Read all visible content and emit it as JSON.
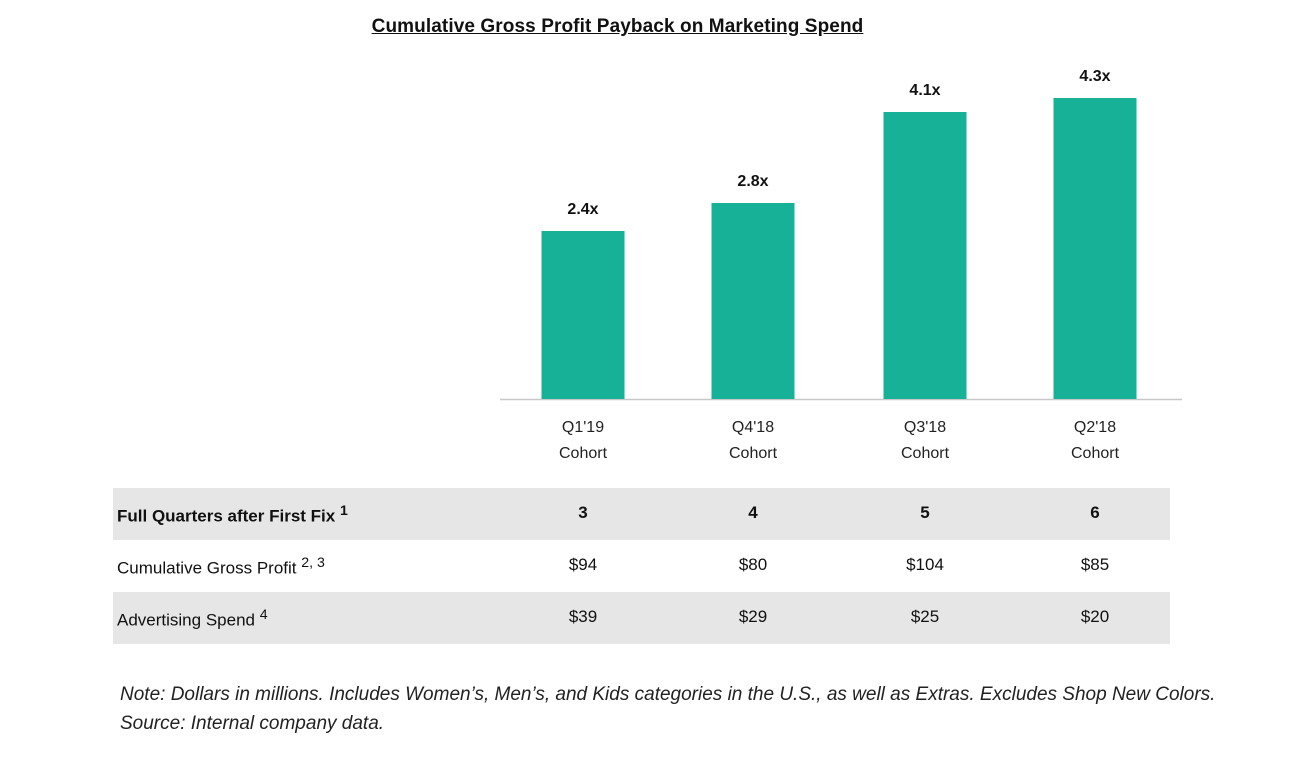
{
  "chart_data": {
    "type": "bar",
    "title": "Cumulative Gross Profit Payback on Marketing Spend",
    "categories": [
      "Q1'19 Cohort",
      "Q4'18 Cohort",
      "Q3'18 Cohort",
      "Q2'18 Cohort"
    ],
    "category_lines": [
      [
        "Q1'19",
        "Cohort"
      ],
      [
        "Q4'18",
        "Cohort"
      ],
      [
        "Q3'18",
        "Cohort"
      ],
      [
        "Q2'18",
        "Cohort"
      ]
    ],
    "values": [
      2.4,
      2.8,
      4.1,
      4.3
    ],
    "data_labels": [
      "2.4x",
      "2.8x",
      "4.1x",
      "4.3x"
    ],
    "xlabel": "",
    "ylabel": "",
    "ylim": [
      0,
      4.3
    ],
    "grid": false,
    "bar_color": "#17b197"
  },
  "table": {
    "rows": [
      {
        "label": "Full Quarters after First Fix",
        "sup": "1",
        "values": [
          "3",
          "4",
          "5",
          "6"
        ]
      },
      {
        "label": "Cumulative Gross Profit",
        "sup": "2, 3",
        "values": [
          "$94",
          "$80",
          "$104",
          "$85"
        ]
      },
      {
        "label": "Advertising Spend",
        "sup": "4",
        "values": [
          "$39",
          "$29",
          "$25",
          "$20"
        ]
      }
    ]
  },
  "note": "Note: Dollars in millions. Includes Women’s, Men’s, and Kids categories in the U.S., as well as Extras. Excludes Shop New Colors. Source: Internal company data."
}
